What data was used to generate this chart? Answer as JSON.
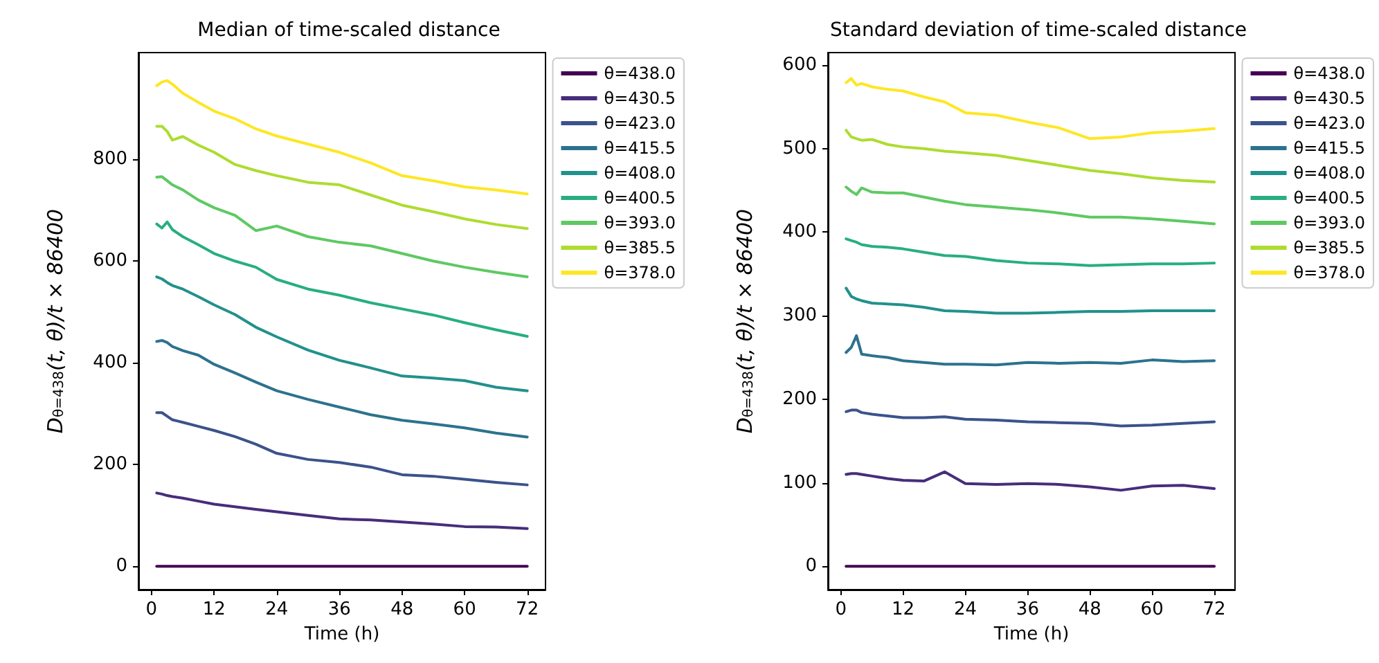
{
  "chart_data": [
    {
      "type": "line",
      "title": "Median of time-scaled distance",
      "xlabel": "Time (h)",
      "ylabel": "D$_{θ=438}$(t, θ)/t × 86400",
      "xlim": [
        -2.5,
        75.5
      ],
      "xticks": [
        0,
        12,
        24,
        36,
        48,
        60,
        72
      ],
      "ylim": [
        -46,
        1010
      ],
      "yticks": [
        0,
        200,
        400,
        600,
        800
      ],
      "grid": false,
      "legend": "top right",
      "marker": "none",
      "line_style": "solid",
      "x": [
        1,
        2,
        3,
        4,
        6,
        9,
        12,
        16,
        20,
        24,
        30,
        36,
        42,
        48,
        54,
        60,
        66,
        72
      ],
      "series": [
        {
          "name": "θ=438.0",
          "color": "#440154",
          "values": [
            0,
            0,
            0,
            0,
            0,
            0,
            0,
            0,
            0,
            0,
            0,
            0,
            0,
            0,
            0,
            0,
            0,
            0
          ]
        },
        {
          "name": "θ=430.5",
          "color": "#472d7b",
          "values": [
            144,
            142,
            139,
            137,
            134,
            128,
            122,
            117,
            112,
            107,
            100,
            93,
            91,
            87,
            83,
            78,
            77,
            74
          ]
        },
        {
          "name": "θ=423.0",
          "color": "#3b528b",
          "values": [
            302,
            302,
            295,
            288,
            283,
            275,
            267,
            255,
            240,
            222,
            210,
            204,
            195,
            180,
            177,
            171,
            165,
            160
          ]
        },
        {
          "name": "θ=415.5",
          "color": "#2c728e",
          "values": [
            442,
            444,
            440,
            432,
            424,
            415,
            397,
            380,
            362,
            345,
            328,
            313,
            298,
            287,
            280,
            272,
            262,
            254
          ]
        },
        {
          "name": "θ=408.0",
          "color": "#21918c",
          "values": [
            569,
            565,
            558,
            552,
            545,
            530,
            514,
            495,
            470,
            451,
            425,
            405,
            390,
            374,
            370,
            365,
            352,
            345
          ]
        },
        {
          "name": "θ=400.5",
          "color": "#28ae80",
          "values": [
            673,
            665,
            677,
            662,
            648,
            632,
            615,
            600,
            588,
            564,
            545,
            533,
            518,
            506,
            494,
            479,
            465,
            452
          ]
        },
        {
          "name": "θ=393.0",
          "color": "#5ec962",
          "values": [
            765,
            766,
            758,
            750,
            740,
            720,
            705,
            690,
            660,
            669,
            648,
            637,
            630,
            615,
            600,
            588,
            578,
            569
          ]
        },
        {
          "name": "θ=385.5",
          "color": "#addc30",
          "values": [
            865,
            865,
            855,
            838,
            845,
            828,
            814,
            790,
            778,
            768,
            755,
            750,
            730,
            710,
            697,
            683,
            672,
            664
          ]
        },
        {
          "name": "θ=378.0",
          "color": "#fde725",
          "values": [
            945,
            952,
            955,
            948,
            930,
            912,
            895,
            880,
            860,
            846,
            830,
            814,
            793,
            768,
            758,
            746,
            740,
            732
          ]
        }
      ]
    },
    {
      "type": "line",
      "title": "Standard deviation of time-scaled distance",
      "xlabel": "Time (h)",
      "ylabel": "D$_{θ=438}$(t, θ)/t × 86400",
      "xlim": [
        -2.5,
        76
      ],
      "xticks": [
        0,
        12,
        24,
        36,
        48,
        60,
        72
      ],
      "ylim": [
        -28,
        615
      ],
      "yticks": [
        0,
        100,
        200,
        300,
        400,
        500,
        600
      ],
      "grid": false,
      "legend": "top right",
      "marker": "none",
      "line_style": "solid",
      "x": [
        1,
        2,
        3,
        4,
        6,
        9,
        12,
        16,
        20,
        24,
        30,
        36,
        42,
        48,
        54,
        60,
        66,
        72
      ],
      "series": [
        {
          "name": "θ=438.0",
          "color": "#440154",
          "values": [
            0,
            0,
            0,
            0,
            0,
            0,
            0,
            0,
            0,
            0,
            0,
            0,
            0,
            0,
            0,
            0,
            0,
            0
          ]
        },
        {
          "name": "θ=430.5",
          "color": "#472d7b",
          "values": [
            110,
            111,
            111,
            110,
            108,
            105,
            103,
            102,
            113,
            99,
            98,
            99,
            98,
            95,
            91,
            96,
            97,
            93
          ]
        },
        {
          "name": "θ=423.0",
          "color": "#3b528b",
          "values": [
            185,
            187,
            187,
            184,
            182,
            180,
            178,
            178,
            179,
            176,
            175,
            173,
            172,
            171,
            168,
            169,
            171,
            173
          ]
        },
        {
          "name": "θ=415.5",
          "color": "#2c728e",
          "values": [
            256,
            262,
            276,
            254,
            252,
            250,
            246,
            244,
            242,
            242,
            241,
            244,
            243,
            244,
            243,
            247,
            245,
            246
          ]
        },
        {
          "name": "θ=408.0",
          "color": "#21918c",
          "values": [
            333,
            323,
            320,
            318,
            315,
            314,
            313,
            310,
            306,
            305,
            303,
            303,
            304,
            305,
            305,
            306,
            306,
            306
          ]
        },
        {
          "name": "θ=400.5",
          "color": "#28ae80",
          "values": [
            392,
            390,
            388,
            385,
            383,
            382,
            380,
            376,
            372,
            371,
            366,
            363,
            362,
            360,
            361,
            362,
            362,
            363
          ]
        },
        {
          "name": "θ=393.0",
          "color": "#5ec962",
          "values": [
            454,
            449,
            445,
            453,
            448,
            447,
            447,
            442,
            437,
            433,
            430,
            427,
            423,
            418,
            418,
            416,
            413,
            410
          ]
        },
        {
          "name": "θ=385.5",
          "color": "#addc30",
          "values": [
            522,
            514,
            512,
            510,
            511,
            505,
            502,
            500,
            497,
            495,
            492,
            486,
            480,
            474,
            470,
            465,
            462,
            460
          ]
        },
        {
          "name": "θ=378.0",
          "color": "#fde725",
          "values": [
            579,
            584,
            576,
            578,
            574,
            571,
            569,
            562,
            556,
            543,
            540,
            532,
            525,
            512,
            514,
            519,
            521,
            524
          ]
        }
      ]
    }
  ]
}
